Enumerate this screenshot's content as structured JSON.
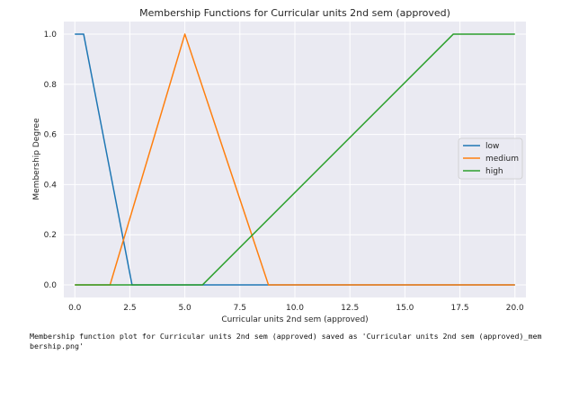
{
  "chart_data": {
    "type": "line",
    "title": "Membership Functions for Curricular units 2nd sem (approved)",
    "xlabel": "Curricular units 2nd sem (approved)",
    "ylabel": "Membership Degree",
    "xlim": [
      -0.5,
      20.5
    ],
    "ylim": [
      -0.05,
      1.05
    ],
    "x_ticks": [
      0.0,
      2.5,
      5.0,
      7.5,
      10.0,
      12.5,
      15.0,
      17.5,
      20.0
    ],
    "x_tick_labels": [
      "0.0",
      "2.5",
      "5.0",
      "7.5",
      "10.0",
      "12.5",
      "15.0",
      "17.5",
      "20.0"
    ],
    "y_ticks": [
      0.0,
      0.2,
      0.4,
      0.6,
      0.8,
      1.0
    ],
    "y_tick_labels": [
      "0.0",
      "0.2",
      "0.4",
      "0.6",
      "0.8",
      "1.0"
    ],
    "grid": true,
    "legend_position": "center-right",
    "background": "#eaeaf2",
    "series": [
      {
        "name": "low",
        "color": "#1f77b4",
        "x": [
          0,
          0.4,
          2.6,
          20
        ],
        "y": [
          1,
          1,
          0,
          0
        ]
      },
      {
        "name": "medium",
        "color": "#ff7f0e",
        "x": [
          0,
          1.6,
          5.0,
          8.8,
          20
        ],
        "y": [
          0,
          0,
          1,
          0,
          0
        ]
      },
      {
        "name": "high",
        "color": "#2ca02c",
        "x": [
          0,
          5.8,
          17.2,
          20
        ],
        "y": [
          0,
          0,
          1,
          1
        ]
      }
    ]
  },
  "output": {
    "text": "Membership function plot for Curricular units 2nd sem (approved) saved as 'Curricular units 2nd sem (approved)_mem\nbership.png'"
  }
}
